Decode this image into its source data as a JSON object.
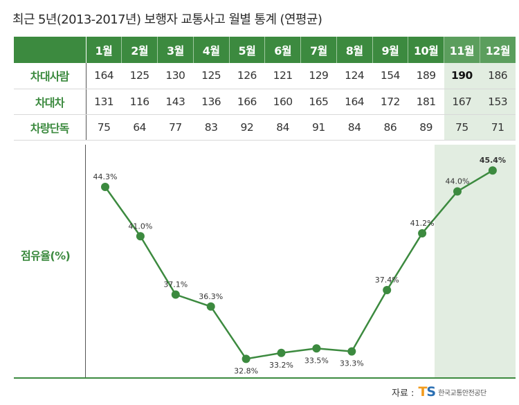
{
  "title": "최근 5년(2013-2017년) 보행자 교통사고 월별 통계 (연평균)",
  "table": {
    "months": [
      "1월",
      "2월",
      "3월",
      "4월",
      "5월",
      "6월",
      "7월",
      "8월",
      "9월",
      "10월",
      "11월",
      "12월"
    ],
    "rows": [
      {
        "label": "차대사람",
        "values": [
          "164",
          "125",
          "130",
          "125",
          "126",
          "121",
          "129",
          "124",
          "154",
          "189",
          "190",
          "186"
        ]
      },
      {
        "label": "차대차",
        "values": [
          "131",
          "116",
          "143",
          "136",
          "166",
          "160",
          "165",
          "164",
          "172",
          "181",
          "167",
          "153"
        ]
      },
      {
        "label": "차량단독",
        "values": [
          "75",
          "64",
          "77",
          "83",
          "92",
          "84",
          "91",
          "84",
          "86",
          "89",
          "75",
          "71"
        ]
      }
    ]
  },
  "share_label": "점유율(%)",
  "chart_data": {
    "type": "line",
    "categories": [
      "1월",
      "2월",
      "3월",
      "4월",
      "5월",
      "6월",
      "7월",
      "8월",
      "9월",
      "10월",
      "11월",
      "12월"
    ],
    "ylabel": "점유율(%)",
    "series": [
      {
        "values": [
          44.3,
          41.0,
          37.1,
          36.3,
          32.8,
          33.2,
          33.5,
          33.3,
          37.4,
          41.2,
          44.0,
          45.4
        ]
      }
    ],
    "point_labels": [
      "44.3%",
      "41.0%",
      "37.1%",
      "36.3%",
      "32.8%",
      "33.2%",
      "33.5%",
      "33.3%",
      "37.4%",
      "41.2%",
      "44.0%",
      "45.4%"
    ],
    "highlight_months": [
      "11월",
      "12월"
    ],
    "line_color": "#3c8a3f"
  },
  "source": {
    "prefix": "자료 :",
    "logo_t": "T",
    "logo_s": "S",
    "org": "한국교통안전공단"
  },
  "colors": {
    "green": "#3c8a3f",
    "highlight": "#e2ede1",
    "logo_orange": "#f29b1c",
    "logo_blue": "#2a6fb3"
  }
}
